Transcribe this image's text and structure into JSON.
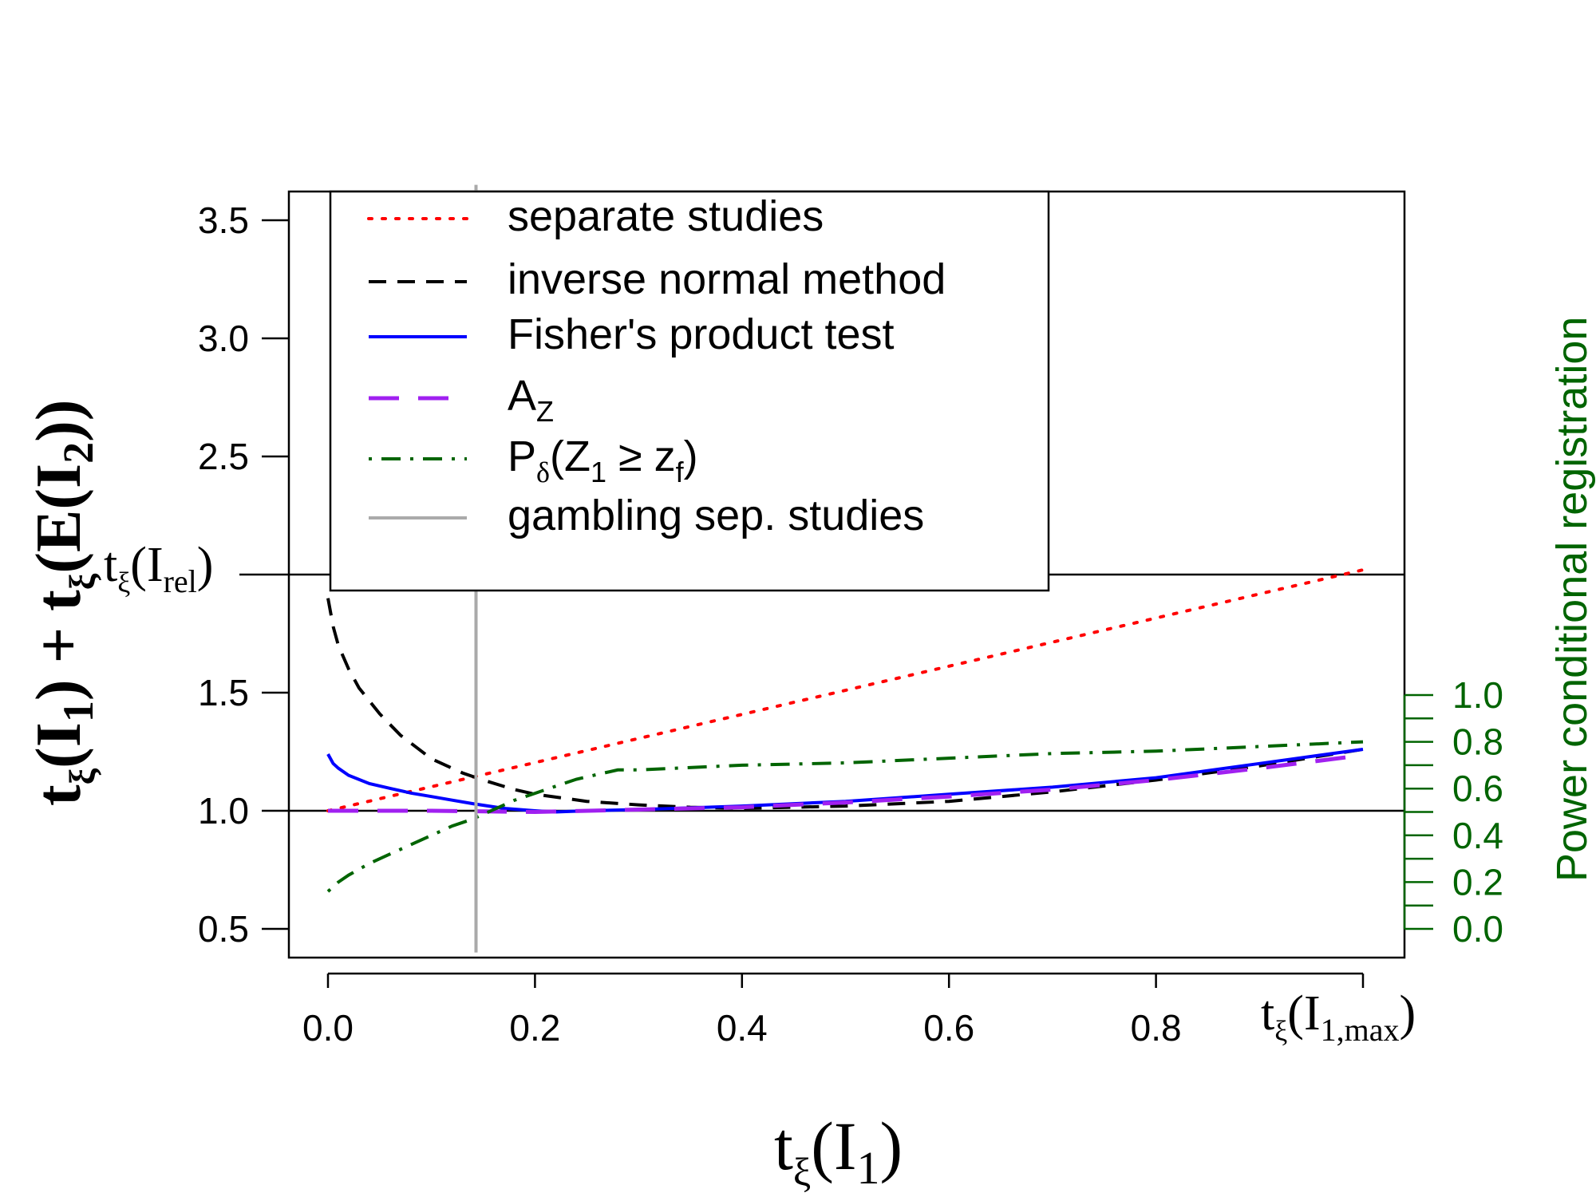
{
  "chart_data": {
    "type": "line",
    "xlabel": {
      "prefix": "t",
      "xi": "ξ",
      "paren": "(I",
      "sub": "1",
      "close": ")"
    },
    "ylabel": {
      "part1_t": "t",
      "part1_xi": "ξ",
      "part1_paren": "(I",
      "part1_sub": "1",
      "part1_close": ")",
      "plus": " + ",
      "part2_t": "t",
      "part2_xi": "ξ",
      "part2_paren": "(E(I",
      "part2_sub": "2",
      "part2_close": "))"
    },
    "right_ylabel": "Power conditional registration",
    "right_axis_color": "#006400",
    "xlim": [
      0.0,
      1.0
    ],
    "ylim": [
      0.5,
      3.5
    ],
    "right_ylim": [
      0.0,
      1.0
    ],
    "x_ticks": [
      "0.0",
      "0.2",
      "0.4",
      "0.6",
      "0.8"
    ],
    "y_ticks": [
      "0.5",
      "1.0",
      "1.5",
      "2.5",
      "3.0",
      "3.5"
    ],
    "right_ticks": [
      "0.0",
      "0.2",
      "0.4",
      "0.6",
      "0.8",
      "1.0"
    ],
    "reference_lines": {
      "y_one": 1.0,
      "y_rel": 2.0
    },
    "annotations": {
      "t_rel": {
        "t": "t",
        "xi": "ξ",
        "paren": "(I",
        "sub": "rel",
        "close": ")"
      },
      "t_max": {
        "t": "t",
        "xi": "ξ",
        "paren": "(I",
        "sub": "1,max",
        "close": ")"
      }
    },
    "legend": {
      "position": "top-left",
      "entries": [
        {
          "label": "separate studies",
          "color": "#ff0000",
          "style": "dotted"
        },
        {
          "label": "inverse normal method",
          "color": "#000000",
          "style": "dashed"
        },
        {
          "label": "Fisher's product test",
          "color": "#0000ff",
          "style": "solid"
        },
        {
          "label": "A",
          "sub": "Z",
          "color": "#a020f0",
          "style": "longdash"
        },
        {
          "label": "P",
          "sub_delta": "δ",
          "rest": "(Z",
          "sub1": "1",
          "geq": " ≥ z",
          "subf": "f",
          "close": ")",
          "color": "#006400",
          "style": "dotdash"
        },
        {
          "label": "gambling sep. studies",
          "color": "#aaaaaa",
          "style": "solid"
        }
      ]
    },
    "series": [
      {
        "name": "separate studies",
        "color": "#ff0000",
        "style": "dotted",
        "x": [
          0.0,
          1.0
        ],
        "y": [
          1.0,
          2.02
        ]
      },
      {
        "name": "inverse normal method",
        "color": "#000000",
        "style": "dashed",
        "x": [
          0.0,
          0.005,
          0.01,
          0.02,
          0.03,
          0.05,
          0.07,
          0.1,
          0.13,
          0.15,
          0.18,
          0.2,
          0.25,
          0.3,
          0.35,
          0.4,
          0.5,
          0.6,
          0.7,
          0.8,
          0.9,
          1.0
        ],
        "y": [
          1.9,
          1.78,
          1.7,
          1.6,
          1.52,
          1.41,
          1.32,
          1.22,
          1.16,
          1.13,
          1.09,
          1.07,
          1.04,
          1.025,
          1.015,
          1.01,
          1.02,
          1.04,
          1.08,
          1.13,
          1.19,
          1.26
        ]
      },
      {
        "name": "Fisher's product test",
        "color": "#0000ff",
        "style": "solid",
        "x": [
          0.0,
          0.005,
          0.01,
          0.02,
          0.04,
          0.06,
          0.08,
          0.1,
          0.12,
          0.14,
          0.17,
          0.2,
          0.22,
          0.25,
          0.3,
          0.4,
          0.5,
          0.6,
          0.7,
          0.8,
          0.9,
          1.0
        ],
        "y": [
          1.24,
          1.2,
          1.18,
          1.15,
          1.115,
          1.095,
          1.075,
          1.06,
          1.045,
          1.03,
          1.01,
          1.0,
          0.995,
          1.0,
          1.005,
          1.02,
          1.04,
          1.07,
          1.1,
          1.14,
          1.2,
          1.26
        ]
      },
      {
        "name": "A_Z",
        "color": "#a020f0",
        "style": "longdash",
        "x": [
          0.0,
          0.1,
          0.2,
          0.3,
          0.4,
          0.5,
          0.6,
          0.7,
          0.8,
          0.9,
          1.0
        ],
        "y": [
          1.0,
          1.0,
          0.995,
          1.005,
          1.015,
          1.035,
          1.06,
          1.09,
          1.13,
          1.18,
          1.235
        ]
      },
      {
        "name": "P_delta(Z1 >= zf)",
        "color": "#006400",
        "style": "dotdash",
        "axis": "right",
        "x": [
          0.0,
          0.01,
          0.02,
          0.04,
          0.06,
          0.08,
          0.1,
          0.12,
          0.14,
          0.16,
          0.18,
          0.2,
          0.22,
          0.24,
          0.26,
          0.28,
          0.3,
          0.4,
          0.5,
          0.6,
          0.7,
          0.8,
          0.9,
          1.0
        ],
        "y": [
          0.16,
          0.2,
          0.23,
          0.28,
          0.32,
          0.36,
          0.4,
          0.44,
          0.47,
          0.51,
          0.55,
          0.58,
          0.61,
          0.64,
          0.66,
          0.68,
          0.68,
          0.7,
          0.71,
          0.73,
          0.75,
          0.76,
          0.78,
          0.8
        ]
      },
      {
        "name": "gambling sep. studies",
        "color": "#aaaaaa",
        "style": "solid",
        "vertical": true,
        "x": [
          0.143,
          0.143
        ],
        "y": [
          0.4,
          3.65
        ]
      }
    ]
  }
}
